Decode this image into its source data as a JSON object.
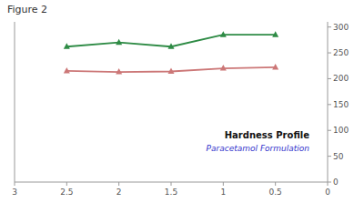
{
  "chart_data": {
    "type": "line",
    "title": "Figure 2",
    "x": [
      2.5,
      2.0,
      1.5,
      1.0,
      0.5
    ],
    "series": [
      {
        "color": "#2e8b45",
        "marker": "triangle",
        "values": [
          262,
          270,
          262,
          285,
          285
        ]
      },
      {
        "color": "#cc7777",
        "marker": "triangle",
        "values": [
          215,
          213,
          214,
          220,
          222
        ]
      }
    ],
    "xlim": [
      3,
      0
    ],
    "xticks": [
      3,
      2.5,
      2,
      1.5,
      1,
      0.5,
      0
    ],
    "ylim": [
      0,
      310
    ],
    "yticks": [
      0,
      50,
      100,
      150,
      200,
      250,
      300
    ],
    "grid": false,
    "annotations": [
      {
        "text": "Hardness Profile",
        "color": "#111111"
      },
      {
        "text": "Paracetamol Formulation",
        "color": "#3333cc"
      }
    ]
  }
}
